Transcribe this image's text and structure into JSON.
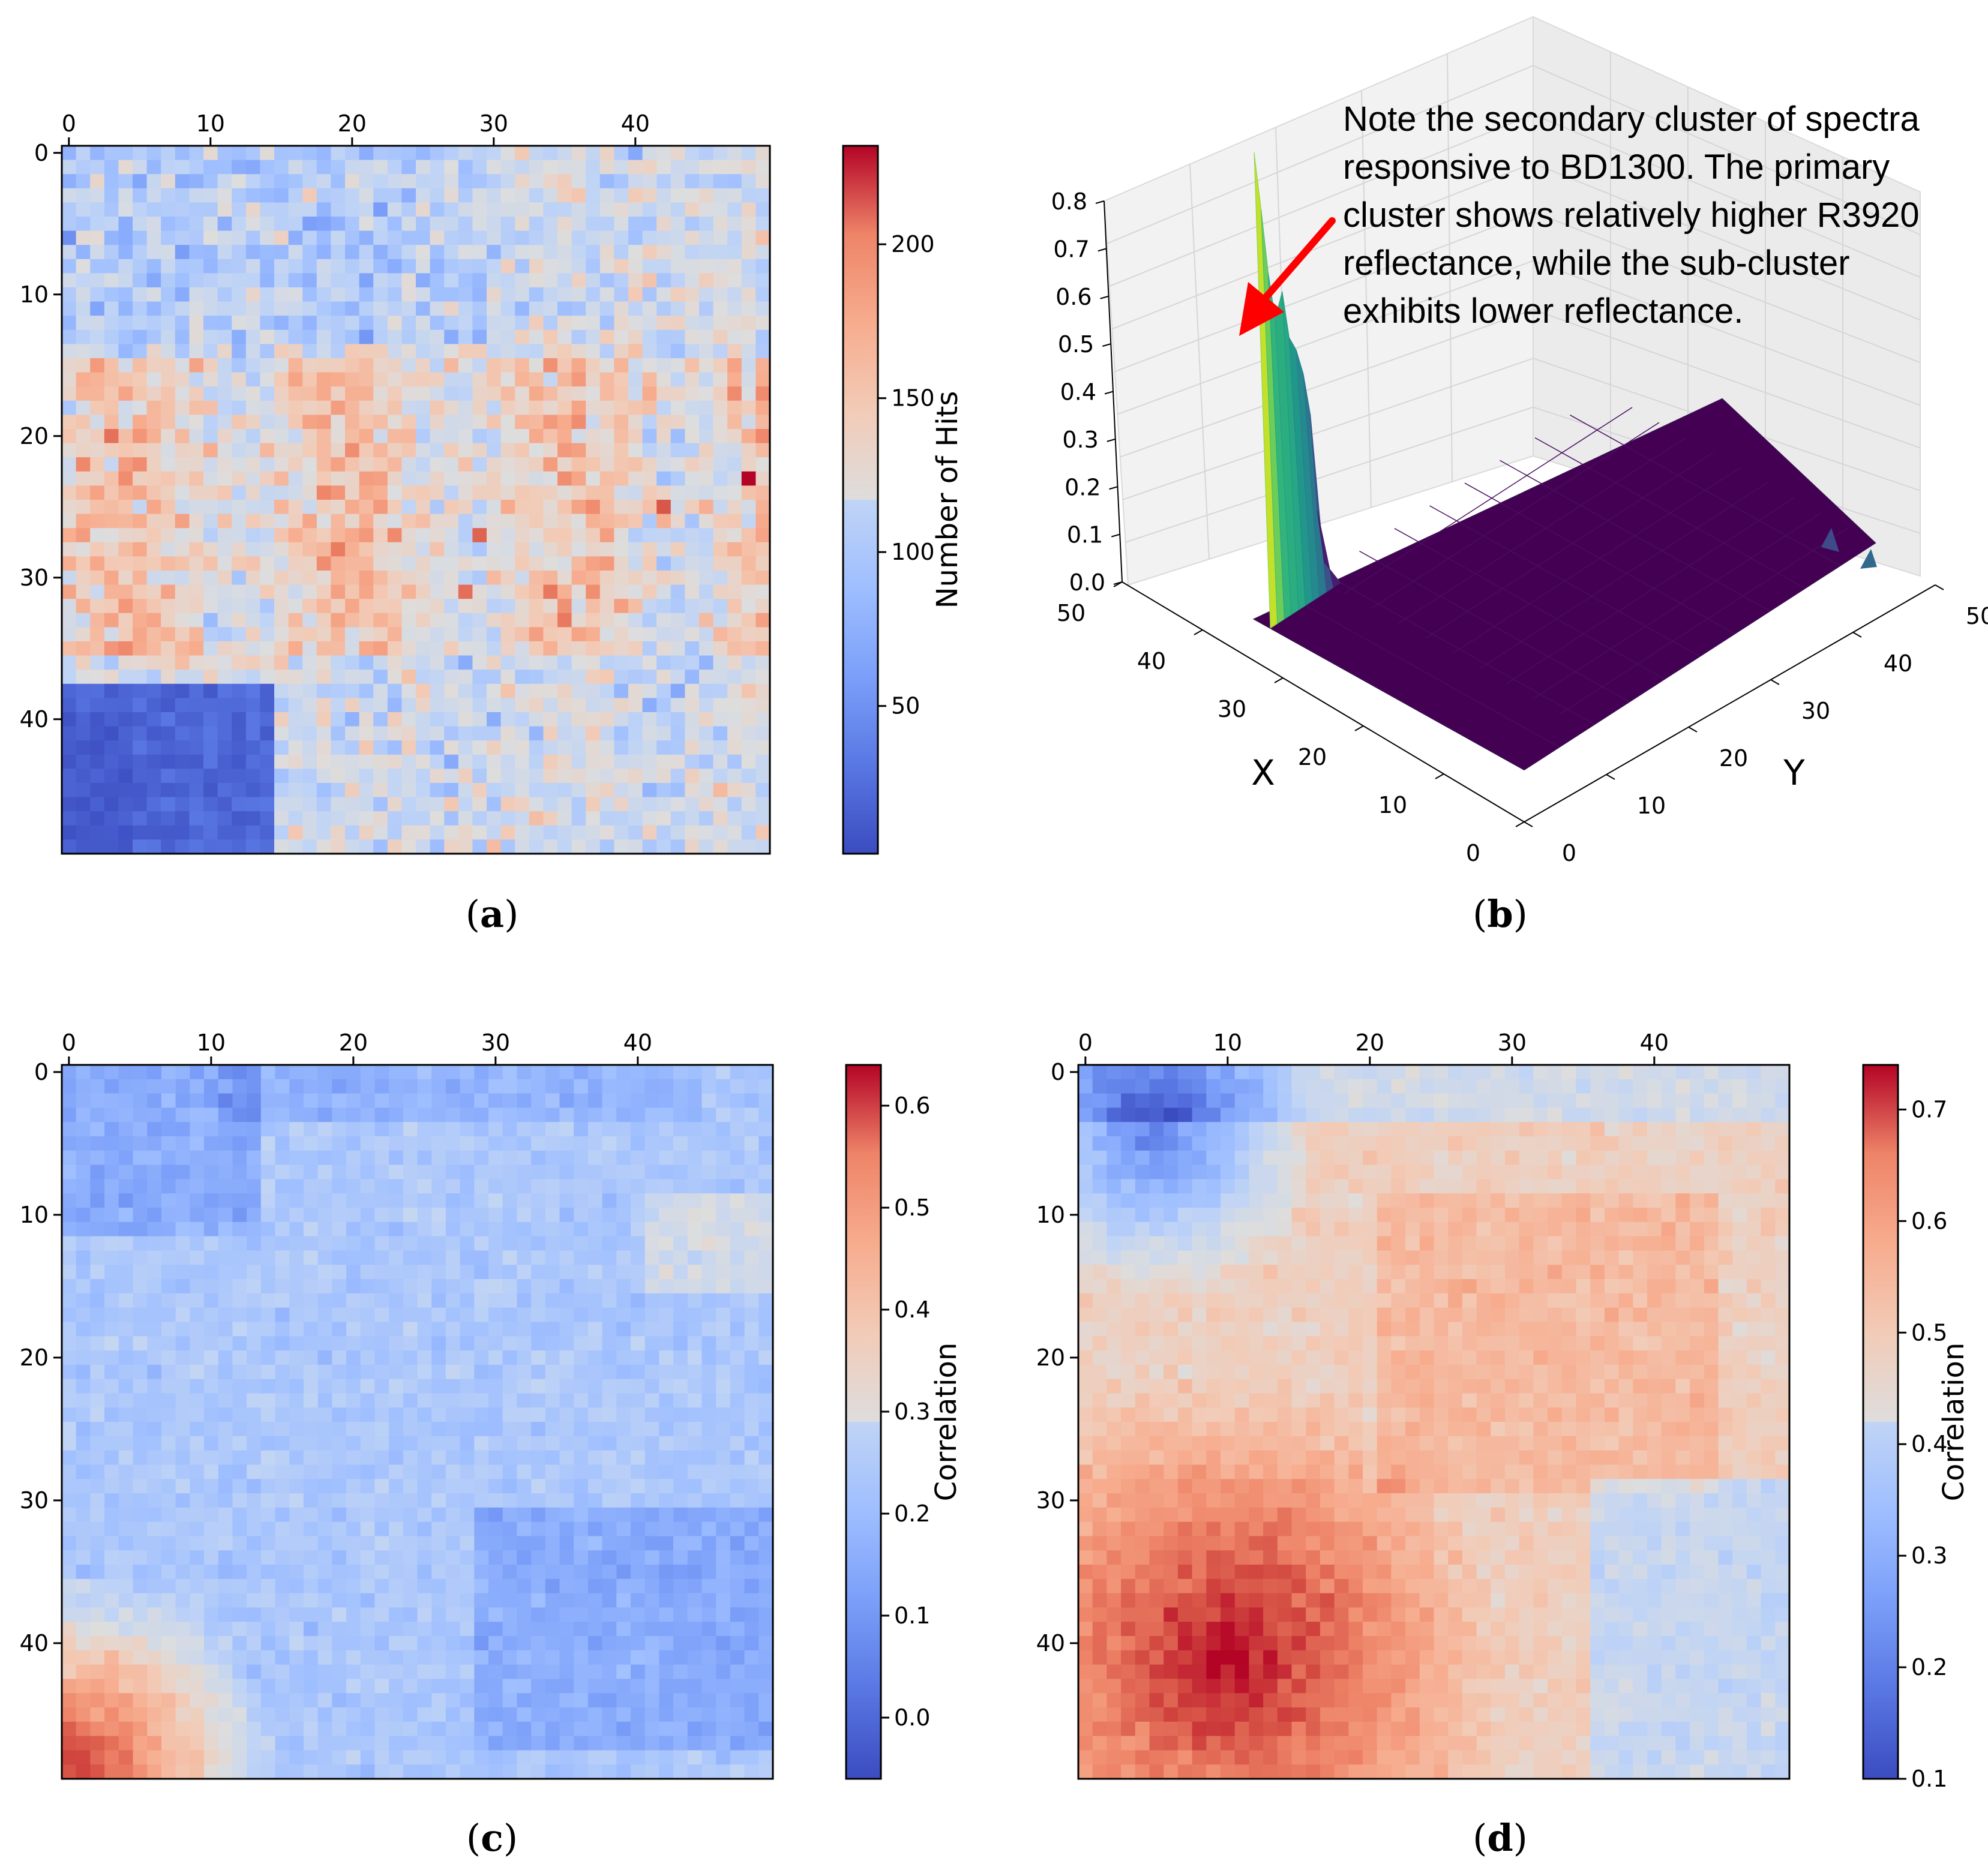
{
  "figure": {
    "panels": [
      {
        "id": "a",
        "caption_open": "(",
        "caption_letter": "a",
        "caption_close": ")"
      },
      {
        "id": "b",
        "caption_open": "(",
        "caption_letter": "b",
        "caption_close": ")"
      },
      {
        "id": "c",
        "caption_open": "(",
        "caption_letter": "c",
        "caption_close": ")"
      },
      {
        "id": "d",
        "caption_open": "(",
        "caption_letter": "d",
        "caption_close": ")"
      }
    ],
    "annotation_lines": [
      "Note the secondary cluster of spectra",
      "responsive to BD1300. The primary",
      "cluster shows relatively higher R3920",
      "reflectance, while the sub-cluster",
      "exhibits lower reflectance."
    ],
    "colors": {
      "coolwarm_low": "#3b4cc0",
      "coolwarm_mid": "#dddddd",
      "coolwarm_high": "#b40426",
      "viridis_low": "#440154",
      "viridis_high": "#fde725",
      "arrow": "#ff0000"
    }
  },
  "chart_data": [
    {
      "id": "a",
      "type": "heatmap",
      "title": "",
      "grid_size": [
        50,
        50
      ],
      "x_ticks": [
        "0",
        "10",
        "20",
        "30",
        "40"
      ],
      "y_ticks": [
        "0",
        "10",
        "20",
        "30",
        "40"
      ],
      "colorbar_label": "Number of Hits",
      "colorbar_ticks": [
        "50",
        "100",
        "150",
        "200"
      ],
      "colorbar_tick_values": [
        50,
        100,
        150,
        200
      ],
      "vmin": 2,
      "vmax": 232,
      "colormap": "coolwarm",
      "seed": 11,
      "field_description": "SOM hit counts; mostly ~90-140 with warm band rows 15-35; near-zero block in rows 38-49, cols 0-14",
      "notable_cells": [
        [
          23,
          48,
          232
        ],
        [
          25,
          42,
          205
        ],
        [
          27,
          29,
          200
        ],
        [
          31,
          28,
          195
        ]
      ]
    },
    {
      "id": "b",
      "type": "surface3d",
      "title": "",
      "xlabel": "X",
      "ylabel": "Y",
      "x_ticks": [
        "0",
        "10",
        "20",
        "30",
        "40",
        "50"
      ],
      "y_ticks": [
        "0",
        "10",
        "20",
        "30",
        "40",
        "50"
      ],
      "z_ticks": [
        "0.0",
        "0.1",
        "0.2",
        "0.3",
        "0.4",
        "0.5",
        "0.6",
        "0.7",
        "0.8"
      ],
      "z_range": [
        0,
        0.8
      ],
      "colormap": "viridis",
      "ridge_x": 50,
      "ridge_profile_y": [
        0,
        1,
        2,
        3,
        4,
        5,
        6,
        7,
        8,
        9,
        10
      ],
      "ridge_profile_z": [
        0.83,
        0.72,
        0.6,
        0.51,
        0.55,
        0.46,
        0.43,
        0.38,
        0.3,
        0.12,
        0.02
      ],
      "floor_value": 0.0
    },
    {
      "id": "c",
      "type": "heatmap",
      "title": "",
      "grid_size": [
        50,
        50
      ],
      "x_ticks": [
        "0",
        "10",
        "20",
        "30",
        "40"
      ],
      "y_ticks": [
        "0",
        "10",
        "20",
        "30",
        "40"
      ],
      "colorbar_label": "Correlation",
      "colorbar_ticks": [
        "0.0",
        "0.1",
        "0.2",
        "0.3",
        "0.4",
        "0.5",
        "0.6"
      ],
      "colorbar_tick_values": [
        0.0,
        0.1,
        0.2,
        0.3,
        0.4,
        0.5,
        0.6
      ],
      "vmin": -0.06,
      "vmax": 0.64,
      "colormap": "coolwarm",
      "seed": 23,
      "field_description": "Mostly 0.1-0.25; warm corner rows 40-49 cols 0-13 up to 0.64; cool blobs top-left and rows 32-47 cols 28-49"
    },
    {
      "id": "d",
      "type": "heatmap",
      "title": "",
      "grid_size": [
        50,
        50
      ],
      "x_ticks": [
        "0",
        "10",
        "20",
        "30",
        "40"
      ],
      "y_ticks": [
        "0",
        "10",
        "20",
        "30",
        "40"
      ],
      "colorbar_label": "Correlation",
      "colorbar_ticks": [
        "0.1",
        "0.2",
        "0.3",
        "0.4",
        "0.5",
        "0.6",
        "0.7"
      ],
      "colorbar_tick_values": [
        0.1,
        0.2,
        0.3,
        0.4,
        0.5,
        0.6,
        0.7
      ],
      "vmin": 0.1,
      "vmax": 0.74,
      "colormap": "coolwarm",
      "seed": 37,
      "field_description": "Cool top-left (rows 0-12, cols 0-12) ~0.15-0.25; warm bottom-left (rows 28-49, cols 0-22) up to 0.74; mid ~0.45-0.55 elsewhere"
    }
  ]
}
